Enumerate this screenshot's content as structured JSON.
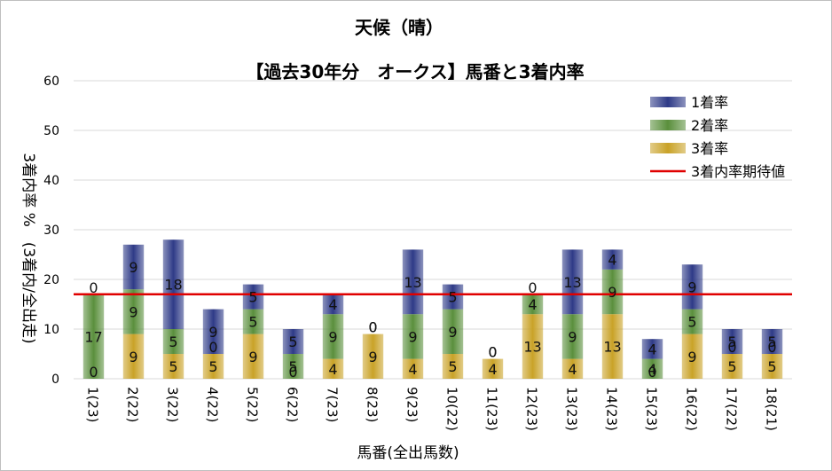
{
  "chart_data": {
    "type": "bar",
    "stacked": true,
    "title": "天候（晴）",
    "subtitle": "【過去30年分　オークス】馬番と3着内率",
    "xlabel": "馬番(全出馬数)",
    "ylabel": "3着内率 %　(3着内/全出走)",
    "ylim": [
      0,
      60
    ],
    "yticks": [
      0,
      10,
      20,
      30,
      40,
      50,
      60
    ],
    "grid": true,
    "legend_position": "top-right",
    "categories": [
      "1(23)",
      "2(22)",
      "3(22)",
      "4(22)",
      "5(22)",
      "6(22)",
      "7(23)",
      "8(23)",
      "9(23)",
      "10(22)",
      "11(23)",
      "12(23)",
      "13(23)",
      "14(23)",
      "15(23)",
      "16(22)",
      "17(22)",
      "18(21)"
    ],
    "series": [
      {
        "name": "3着率",
        "color": "#c9a227",
        "values": [
          0,
          9,
          5,
          5,
          9,
          0,
          4,
          9,
          4,
          5,
          4,
          13,
          4,
          13,
          0,
          9,
          5,
          5
        ]
      },
      {
        "name": "2着率",
        "color": "#5a8f3c",
        "values": [
          17,
          9,
          5,
          0,
          5,
          5,
          9,
          0,
          9,
          9,
          0,
          4,
          9,
          9,
          4,
          5,
          0,
          0
        ]
      },
      {
        "name": "1着率",
        "color": "#2e3a87",
        "values": [
          0,
          9,
          18,
          9,
          5,
          5,
          4,
          0,
          13,
          5,
          0,
          0,
          13,
          4,
          4,
          9,
          5,
          5
        ]
      }
    ],
    "label_positions_note": "",
    "expected_line": {
      "name": "3着内率期待値",
      "value": 17,
      "color": "#e00000"
    }
  }
}
